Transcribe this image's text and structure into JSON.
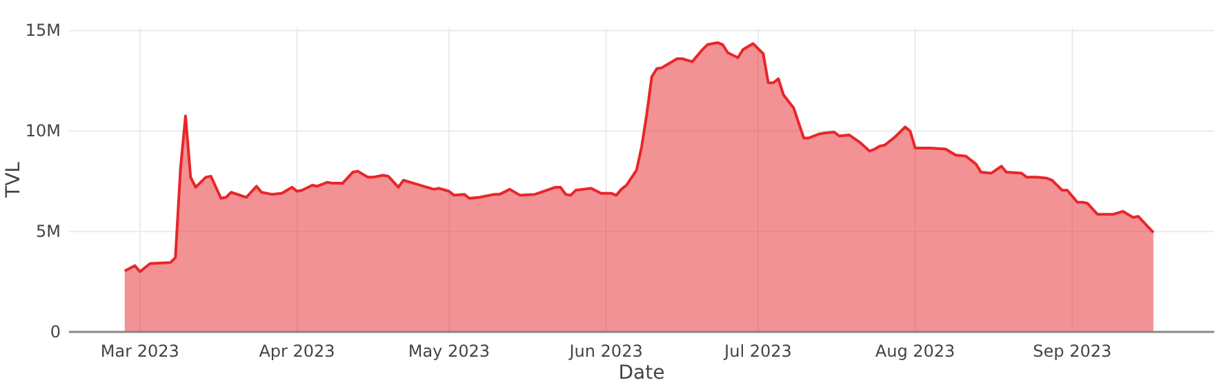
{
  "chart_data": {
    "type": "area",
    "xlabel": "Date",
    "ylabel": "TVL",
    "grid": true,
    "xlim": [
      "2023-02-15",
      "2023-09-29"
    ],
    "xticks": [
      {
        "value": "2023-03-01",
        "label": "Mar 2023"
      },
      {
        "value": "2023-04-01",
        "label": "Apr 2023"
      },
      {
        "value": "2023-05-01",
        "label": "May 2023"
      },
      {
        "value": "2023-06-01",
        "label": "Jun 2023"
      },
      {
        "value": "2023-07-01",
        "label": "Jul 2023"
      },
      {
        "value": "2023-08-01",
        "label": "Aug 2023"
      },
      {
        "value": "2023-09-01",
        "label": "Sep 2023"
      }
    ],
    "ylim": [
      0,
      15.15
    ],
    "yticks": [
      {
        "value": 0,
        "label": "0"
      },
      {
        "value": 5,
        "label": "5M"
      },
      {
        "value": 10,
        "label": "10M"
      },
      {
        "value": 15,
        "label": "15M"
      }
    ],
    "x": [
      "2023-02-26",
      "2023-02-28",
      "2023-03-01",
      "2023-03-03",
      "2023-03-07",
      "2023-03-08",
      "2023-03-09",
      "2023-03-10",
      "2023-03-11",
      "2023-03-12",
      "2023-03-14",
      "2023-03-15",
      "2023-03-17",
      "2023-03-18",
      "2023-03-19",
      "2023-03-22",
      "2023-03-24",
      "2023-03-25",
      "2023-03-27",
      "2023-03-29",
      "2023-03-31",
      "2023-04-01",
      "2023-04-02",
      "2023-04-04",
      "2023-04-05",
      "2023-04-07",
      "2023-04-08",
      "2023-04-10",
      "2023-04-12",
      "2023-04-13",
      "2023-04-15",
      "2023-04-16",
      "2023-04-18",
      "2023-04-19",
      "2023-04-21",
      "2023-04-22",
      "2023-04-24",
      "2023-04-28",
      "2023-04-29",
      "2023-05-01",
      "2023-05-02",
      "2023-05-04",
      "2023-05-05",
      "2023-05-07",
      "2023-05-10",
      "2023-05-11",
      "2023-05-13",
      "2023-05-15",
      "2023-05-18",
      "2023-05-22",
      "2023-05-23",
      "2023-05-24",
      "2023-05-25",
      "2023-05-26",
      "2023-05-29",
      "2023-05-31",
      "2023-06-02",
      "2023-06-03",
      "2023-06-04",
      "2023-06-05",
      "2023-06-07",
      "2023-06-08",
      "2023-06-09",
      "2023-06-10",
      "2023-06-11",
      "2023-06-12",
      "2023-06-13",
      "2023-06-15",
      "2023-06-16",
      "2023-06-18",
      "2023-06-20",
      "2023-06-21",
      "2023-06-23",
      "2023-06-24",
      "2023-06-25",
      "2023-06-27",
      "2023-06-28",
      "2023-06-30",
      "2023-07-01",
      "2023-07-02",
      "2023-07-03",
      "2023-07-04",
      "2023-07-05",
      "2023-07-06",
      "2023-07-08",
      "2023-07-10",
      "2023-07-11",
      "2023-07-13",
      "2023-07-14",
      "2023-07-16",
      "2023-07-17",
      "2023-07-19",
      "2023-07-21",
      "2023-07-23",
      "2023-07-24",
      "2023-07-25",
      "2023-07-26",
      "2023-07-28",
      "2023-07-30",
      "2023-07-31",
      "2023-08-01",
      "2023-08-04",
      "2023-08-07",
      "2023-08-09",
      "2023-08-11",
      "2023-08-13",
      "2023-08-14",
      "2023-08-16",
      "2023-08-18",
      "2023-08-19",
      "2023-08-22",
      "2023-08-23",
      "2023-08-25",
      "2023-08-27",
      "2023-08-28",
      "2023-08-30",
      "2023-08-31",
      "2023-09-02",
      "2023-09-03",
      "2023-09-04",
      "2023-09-06",
      "2023-09-09",
      "2023-09-11",
      "2023-09-13",
      "2023-09-14",
      "2023-09-17"
    ],
    "series": [
      {
        "color": "#e8262a",
        "values": [
          3.03,
          3.3,
          3.0,
          3.4,
          3.45,
          3.7,
          8.1,
          10.75,
          7.7,
          7.2,
          7.7,
          7.75,
          6.65,
          6.7,
          6.95,
          6.7,
          7.25,
          6.95,
          6.85,
          6.9,
          7.2,
          7.0,
          7.05,
          7.3,
          7.25,
          7.45,
          7.4,
          7.4,
          7.95,
          8.0,
          7.7,
          7.7,
          7.8,
          7.75,
          7.2,
          7.55,
          7.4,
          7.1,
          7.15,
          7.0,
          6.8,
          6.85,
          6.65,
          6.7,
          6.85,
          6.85,
          7.1,
          6.8,
          6.85,
          7.2,
          7.2,
          6.85,
          6.8,
          7.05,
          7.15,
          6.9,
          6.9,
          6.8,
          7.1,
          7.3,
          8.05,
          9.2,
          10.8,
          12.7,
          13.1,
          13.15,
          13.3,
          13.6,
          13.6,
          13.45,
          14.05,
          14.3,
          14.4,
          14.3,
          13.9,
          13.65,
          14.05,
          14.35,
          14.1,
          13.85,
          12.4,
          12.4,
          12.6,
          11.8,
          11.15,
          9.65,
          9.65,
          9.85,
          9.9,
          9.95,
          9.75,
          9.8,
          9.45,
          9.0,
          9.1,
          9.25,
          9.3,
          9.7,
          10.2,
          10.0,
          9.15,
          9.15,
          9.1,
          8.8,
          8.75,
          8.35,
          7.95,
          7.9,
          8.25,
          7.95,
          7.9,
          7.7,
          7.7,
          7.65,
          7.55,
          7.05,
          7.05,
          6.45,
          6.45,
          6.4,
          5.85,
          5.85,
          6.0,
          5.7,
          5.75,
          4.95
        ]
      }
    ]
  }
}
